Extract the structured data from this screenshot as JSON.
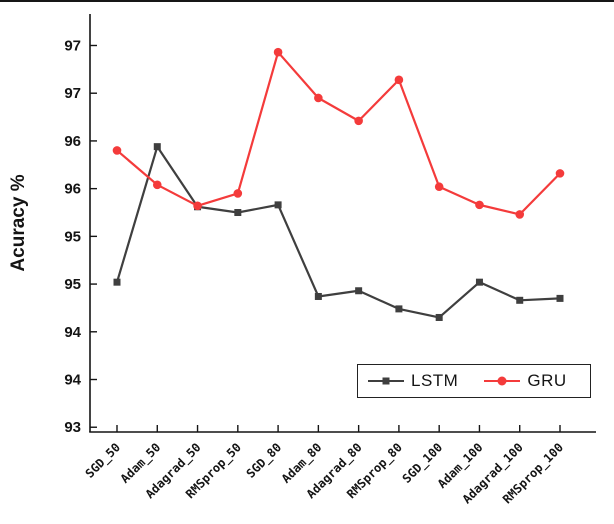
{
  "legend": {
    "items": [
      {
        "label": "LSTM",
        "marker": "square",
        "color": "#3f3f3f"
      },
      {
        "label": "GRU",
        "marker": "circle",
        "color": "#f43b3b"
      }
    ]
  },
  "chart_data": {
    "type": "line",
    "title": "",
    "xlabel": "",
    "ylabel": "Acuracy %",
    "categories": [
      "SGD_50",
      "Adam_50",
      "Adagrad_50",
      "RMSprop_50",
      "SGD_80",
      "Adam_80",
      "Adagrad_80",
      "RMSprop_80",
      "SGD_100",
      "Adam_100",
      "Adagrad_100",
      "RMSprop_100"
    ],
    "series": [
      {
        "name": "LSTM",
        "color": "#3f3f3f",
        "marker": "square",
        "values": [
          94.52,
          95.94,
          95.31,
          95.25,
          95.33,
          94.37,
          94.43,
          94.24,
          94.15,
          94.52,
          94.33,
          94.35
        ]
      },
      {
        "name": "GRU",
        "color": "#f43b3b",
        "marker": "circle",
        "values": [
          95.9,
          95.54,
          95.32,
          95.45,
          96.93,
          96.45,
          96.21,
          96.64,
          95.52,
          95.33,
          95.23,
          95.66
        ]
      }
    ],
    "ylim": [
      93,
      97.3
    ],
    "yticks": {
      "values": [
        93,
        93.5,
        94,
        94.5,
        95,
        95.5,
        96,
        96.5,
        97
      ],
      "labels": [
        "93",
        "94",
        "94",
        "95",
        "95",
        "96",
        "96",
        "97",
        "97"
      ]
    },
    "grid": false,
    "legend_position": "inside-bottom-right",
    "axis_color": "#141414"
  }
}
